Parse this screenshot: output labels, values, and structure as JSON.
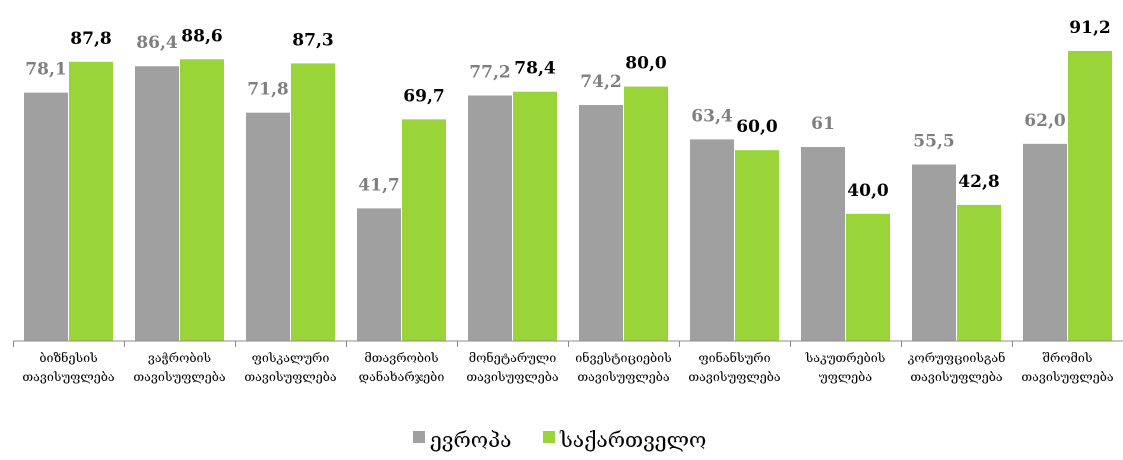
{
  "chart_data": {
    "type": "bar",
    "categories": [
      [
        "ბიზნესის",
        "თავისუფლება"
      ],
      [
        "ვაჭრობის",
        "თავისუფლება"
      ],
      [
        "ფისკალური",
        "თავისუფლება"
      ],
      [
        "მთავრობის",
        "დანახარჯები"
      ],
      [
        "მონეტარული",
        "თავისუფლება"
      ],
      [
        "ინვესტიციების",
        "თავისუფლება"
      ],
      [
        "ფინანსური",
        "თავისუფლება"
      ],
      [
        "საკუთრების",
        "უფლება"
      ],
      [
        "კორუფციისგან",
        "თავისუფლება"
      ],
      [
        "შრომის",
        "თავისუფლება"
      ]
    ],
    "series": [
      {
        "name": "ევროპა",
        "color": "#a0a0a0",
        "label_color": "#7f7f7f",
        "values": [
          78.1,
          86.4,
          71.8,
          41.7,
          77.2,
          74.2,
          63.4,
          61,
          55.5,
          62.0
        ],
        "labels": [
          "78,1",
          "86,4",
          "71,8",
          "41,7",
          "77,2",
          "74,2",
          "63,4",
          "61",
          "55,5",
          "62,0"
        ]
      },
      {
        "name": "საქართველო",
        "color": "#99d539",
        "label_color": "#000000",
        "values": [
          87.8,
          88.6,
          87.3,
          69.7,
          78.4,
          80.0,
          60.0,
          40.0,
          42.8,
          91.2
        ],
        "labels": [
          "87,8",
          "88,6",
          "87,3",
          "69,7",
          "78,4",
          "80,0",
          "60,0",
          "40,0",
          "42,8",
          "91,2"
        ]
      }
    ],
    "title": "",
    "xlabel": "",
    "ylabel": "",
    "ylim": [
      0,
      100
    ],
    "grid": false,
    "legend_position": "bottom"
  }
}
